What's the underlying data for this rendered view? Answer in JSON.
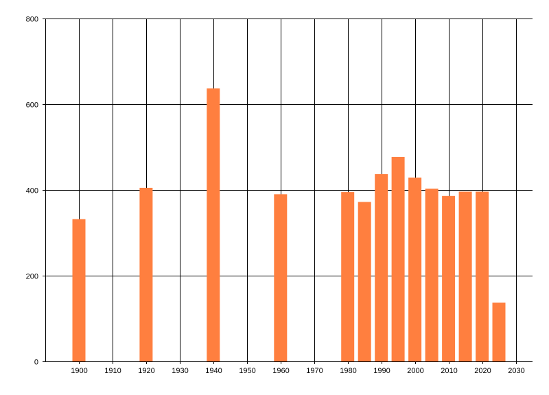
{
  "chart_data": {
    "type": "bar",
    "title": "",
    "xlabel": "",
    "ylabel": "",
    "x": [
      1900,
      1920,
      1940,
      1960,
      1980,
      1985,
      1990,
      1995,
      2000,
      2005,
      2010,
      2015,
      2020,
      2025
    ],
    "values": [
      332,
      405,
      637,
      390,
      395,
      372,
      437,
      477,
      429,
      403,
      386,
      396,
      396,
      137
    ],
    "xlim": [
      1890,
      2035
    ],
    "ylim": [
      0,
      800
    ],
    "x_ticks": [
      "1900",
      "1910",
      "1920",
      "1930",
      "1940",
      "1950",
      "1960",
      "1970",
      "1980",
      "1990",
      "2000",
      "2010",
      "2020",
      "2030"
    ],
    "y_ticks": [
      "0",
      "200",
      "400",
      "600",
      "800"
    ],
    "grid": true,
    "legend": "none",
    "bar_color": "#ff7f3f"
  }
}
